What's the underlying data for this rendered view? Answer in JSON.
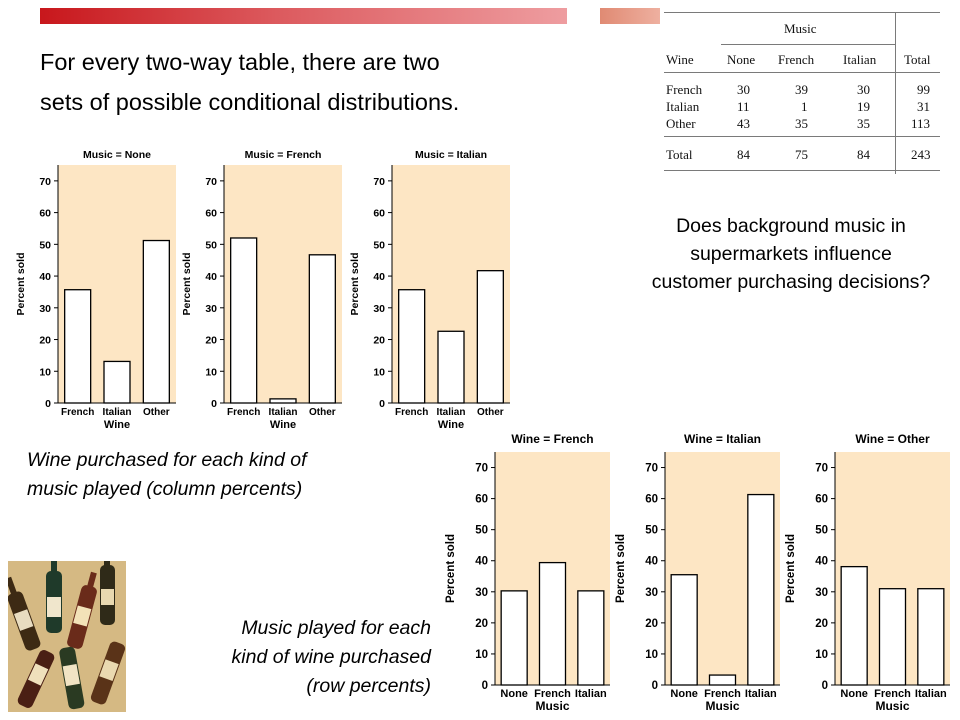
{
  "slide": {
    "intro_line1": "For every two-way table, there are two",
    "intro_line2": "sets of possible conditional distributions.",
    "question": "Does background music in supermarkets influence customer purchasing decisions?",
    "caption_column_line1": "Wine purchased for each kind of",
    "caption_column_line2": "music played (column percents)",
    "caption_row_line1": "Music played for each",
    "caption_row_line2": "kind of wine purchased",
    "caption_row_line3": "(row percents)"
  },
  "colors": {
    "accent_red": "#c8171c",
    "accent_salmon": "#e08a73",
    "chart_background": "#fde6c4",
    "bar_fill": "#ffffff"
  },
  "two_way_table": {
    "group_header": "Music",
    "row_header": "Wine",
    "columns": [
      "None",
      "French",
      "Italian",
      "Total"
    ],
    "rows": [
      {
        "label": "French",
        "values": [
          "30",
          "39",
          "30",
          "99"
        ]
      },
      {
        "label": "Italian",
        "values": [
          "11",
          "1",
          "19",
          "31"
        ]
      },
      {
        "label": "Other",
        "values": [
          "43",
          "35",
          "35",
          "113"
        ]
      }
    ],
    "total_row": {
      "label": "Total",
      "values": [
        "84",
        "75",
        "84",
        "243"
      ]
    }
  },
  "decor_image": {
    "icon": "wine-bottles-image"
  },
  "chart_data": [
    {
      "type": "bar",
      "title": "Music = None",
      "xlabel": "Wine",
      "ylabel": "Percent sold",
      "categories": [
        "French",
        "Italian",
        "Other"
      ],
      "values": [
        35.7,
        13.1,
        51.2
      ],
      "ylim": [
        0,
        75
      ],
      "yticks": [
        0,
        10,
        20,
        30,
        40,
        50,
        60,
        70
      ],
      "grid": false
    },
    {
      "type": "bar",
      "title": "Music = French",
      "xlabel": "Wine",
      "ylabel": "Percent sold",
      "categories": [
        "French",
        "Italian",
        "Other"
      ],
      "values": [
        52.0,
        1.3,
        46.7
      ],
      "ylim": [
        0,
        75
      ],
      "yticks": [
        0,
        10,
        20,
        30,
        40,
        50,
        60,
        70
      ],
      "grid": false
    },
    {
      "type": "bar",
      "title": "Music = Italian",
      "xlabel": "Wine",
      "ylabel": "Percent sold",
      "categories": [
        "French",
        "Italian",
        "Other"
      ],
      "values": [
        35.7,
        22.6,
        41.7
      ],
      "ylim": [
        0,
        75
      ],
      "yticks": [
        0,
        10,
        20,
        30,
        40,
        50,
        60,
        70
      ],
      "grid": false
    },
    {
      "type": "bar",
      "title": "Wine = French",
      "xlabel": "Music",
      "ylabel": "Percent sold",
      "categories": [
        "None",
        "French",
        "Italian"
      ],
      "values": [
        30.3,
        39.4,
        30.3
      ],
      "ylim": [
        0,
        75
      ],
      "yticks": [
        0,
        10,
        20,
        30,
        40,
        50,
        60,
        70
      ],
      "grid": false
    },
    {
      "type": "bar",
      "title": "Wine = Italian",
      "xlabel": "Music",
      "ylabel": "Percent sold",
      "categories": [
        "None",
        "French",
        "Italian"
      ],
      "values": [
        35.5,
        3.2,
        61.3
      ],
      "ylim": [
        0,
        75
      ],
      "yticks": [
        0,
        10,
        20,
        30,
        40,
        50,
        60,
        70
      ],
      "grid": false
    },
    {
      "type": "bar",
      "title": "Wine = Other",
      "xlabel": "Music",
      "ylabel": "Percent sold",
      "categories": [
        "None",
        "French",
        "Italian"
      ],
      "values": [
        38.1,
        31.0,
        31.0
      ],
      "ylim": [
        0,
        75
      ],
      "yticks": [
        0,
        10,
        20,
        30,
        40,
        50,
        60,
        70
      ],
      "grid": false
    }
  ]
}
